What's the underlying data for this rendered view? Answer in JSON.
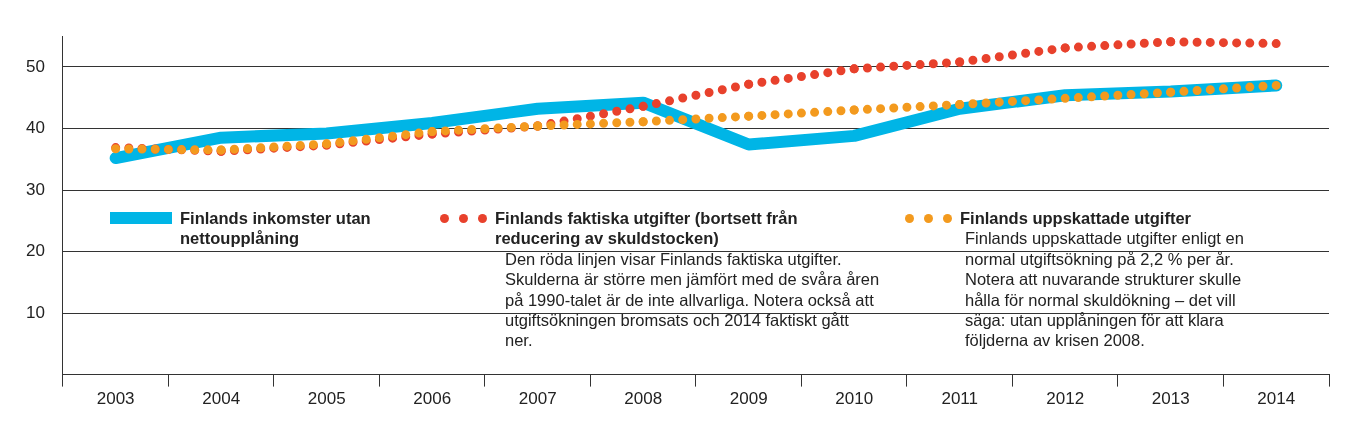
{
  "chart_data": {
    "type": "line",
    "categories": [
      "2003",
      "2004",
      "2005",
      "2006",
      "2007",
      "2008",
      "2009",
      "2010",
      "2011",
      "2012",
      "2013",
      "2014"
    ],
    "series": [
      {
        "name": "Finlands inkomster utan nettoupplåning",
        "color": "#00b5e6",
        "line_style": "solid",
        "values": [
          35.2,
          38.5,
          39.2,
          40.9,
          43.2,
          44.2,
          37.4,
          38.8,
          43.2,
          45.4,
          46.0,
          47.0
        ]
      },
      {
        "name": "Finlands faktiska utgifter (bortsett från reducering av skuldstocken)",
        "color": "#e8412c",
        "line_style": "dotted",
        "values": [
          36.9,
          36.3,
          37.3,
          39.1,
          40.4,
          43.6,
          47.2,
          49.7,
          50.8,
          53.1,
          54.1,
          53.8
        ]
      },
      {
        "name": "Finlands uppskattade utgifter",
        "color": "#f39a1e",
        "line_style": "dotted",
        "values": [
          36.7,
          36.5,
          37.5,
          39.5,
          40.4,
          41.1,
          42.0,
          43.0,
          43.9,
          44.9,
          45.9,
          47.0
        ]
      }
    ],
    "annotations": [
      "Den röda linjen visar Finlands faktiska utgifter. Skulderna är större men jämfört med de svåra åren på 1990-talet är de inte allvarliga. Notera också att utgiftsökningen bromsats och 2014 faktiskt gått ner.",
      "Finlands uppskattade utgifter enligt en normal utgiftsökning på 2,2 % per år. Notera att nuvarande strukturer skulle hålla för normal skuldökning – det vill säga: utan upplåningen för att klara följderna av krisen 2008."
    ],
    "ylim": [
      0,
      55
    ],
    "yticks": [
      10,
      20,
      30,
      40,
      50
    ],
    "grid": "y",
    "legend": "bottom",
    "marker": "none"
  }
}
